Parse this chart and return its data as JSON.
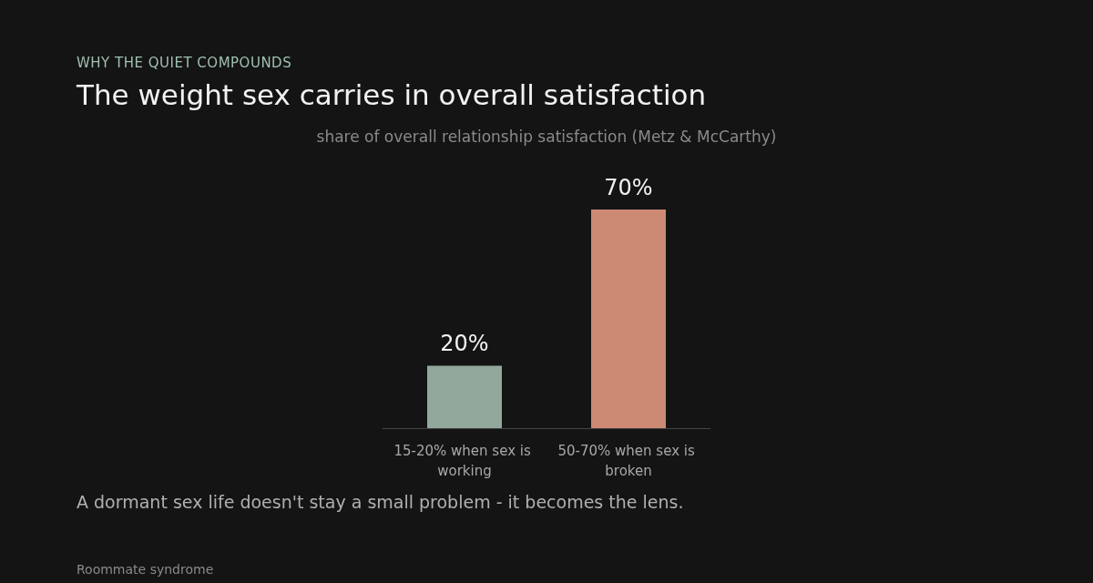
{
  "chart_data": {
    "type": "bar",
    "title": "The weight sex carries in overall satisfaction",
    "subtitle": "share of overall relationship satisfaction (Metz & McCarthy)",
    "categories": [
      "15-20% when sex is working",
      "50-70% when sex is broken"
    ],
    "values": [
      20,
      70
    ],
    "colors": [
      "#93a89d",
      "#cc8a75"
    ],
    "value_labels": [
      "20%",
      "70%"
    ],
    "annotations": [
      "WHY THE QUIET COMPOUNDS",
      "A dormant sex life doesn't stay a small problem - it becomes the lens.",
      "Roommate syndrome"
    ]
  }
}
